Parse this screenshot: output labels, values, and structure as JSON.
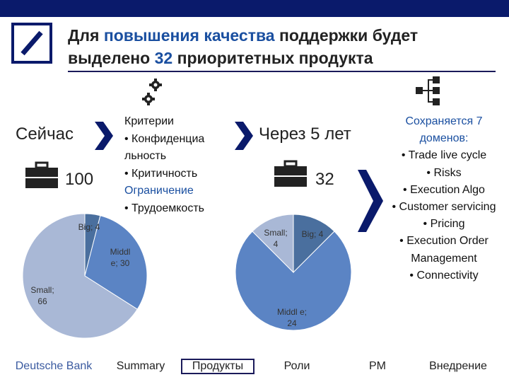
{
  "header": {
    "title_line1_pre": "Для ",
    "title_line1_hl": "повышения качества",
    "title_line1_post": " поддержки будет",
    "title_line2_pre": "выделено ",
    "title_line2_hl": "32",
    "title_line2_post": " приоритетных продукта"
  },
  "now": {
    "label": "Сейчас",
    "count": "100"
  },
  "future": {
    "label": "Через 5 лет",
    "count": "32"
  },
  "criteria": {
    "title": "Критерии",
    "item1": "• Конфиденциа льность",
    "item2": "• Критичность",
    "item2b": "Ограничение",
    "item3": "• Трудоемкость"
  },
  "domains": {
    "title": "Сохраняется 7 доменов:",
    "items": [
      "• Trade live cycle",
      "• Risks",
      "• Execution Algo",
      "• Customer servicing",
      "• Pricing",
      "• Execution Order Management",
      "• Connectivity"
    ]
  },
  "pie_now_labels": {
    "big": "Big; 4",
    "middle": "Middl e; 30",
    "small": "Small; 66"
  },
  "pie_future_labels": {
    "big": "Big; 4",
    "middle": "Middl e; 24",
    "small": "Small; 4"
  },
  "chart_data": [
    {
      "type": "pie",
      "categories": [
        "Big",
        "Middle",
        "Small"
      ],
      "values": [
        4,
        30,
        66
      ]
    },
    {
      "type": "pie",
      "categories": [
        "Big",
        "Middle",
        "Small"
      ],
      "values": [
        4,
        24,
        4
      ]
    }
  ],
  "colors": {
    "big": "#4a6f9e",
    "middle": "#5b84c4",
    "small": "#a9b8d6",
    "navy": "#0a1a6b",
    "accent": "#1a4fa0"
  },
  "footer": {
    "brand": "Deutsche Bank",
    "tabs": [
      "Summary",
      "Продукты",
      "Роли",
      "PM",
      "Внедрение"
    ]
  }
}
